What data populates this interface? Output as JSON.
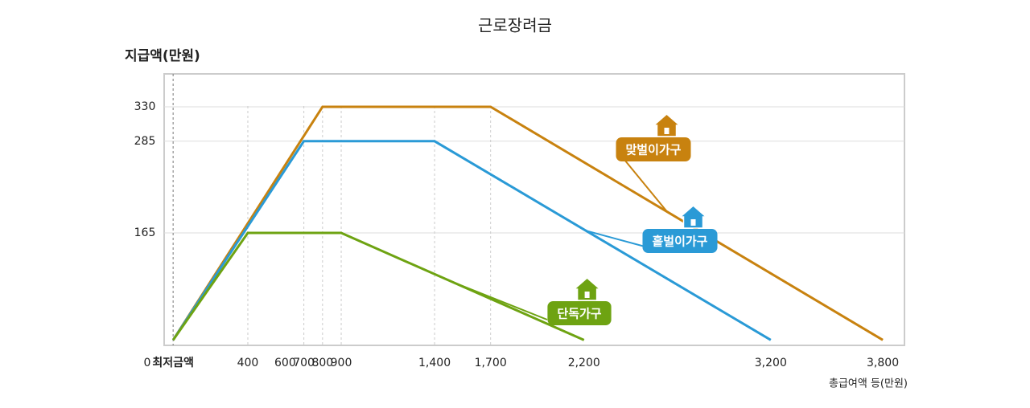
{
  "chart_data": {
    "type": "line",
    "title": "근로장려금",
    "y_axis_label": "지급액(만원)",
    "x_axis_label": "총급여액 등(만원)",
    "origin_label": "0",
    "xlim": [
      -48,
      3916
    ],
    "ylim": [
      18,
      373
    ],
    "yticks": [
      165,
      285,
      330
    ],
    "xticks": [
      {
        "value": 0,
        "label": "최저금액"
      },
      400,
      600,
      700,
      800,
      900,
      {
        "value": 1400,
        "label": "1,400"
      },
      {
        "value": 1700,
        "label": "1,700"
      },
      {
        "value": 2200,
        "label": "2,200"
      },
      {
        "value": 3200,
        "label": "3,200"
      },
      {
        "value": 3800,
        "label": "3,800"
      }
    ],
    "grid": true,
    "series": [
      {
        "name": "맞벌이가구",
        "color": "#c8820f",
        "x": [
          0,
          800,
          1700,
          3800
        ],
        "values": [
          25,
          330,
          330,
          25
        ]
      },
      {
        "name": "홑벌이가구",
        "color": "#2a9ad6",
        "x": [
          0,
          700,
          1400,
          3200
        ],
        "values": [
          25,
          285,
          285,
          25
        ]
      },
      {
        "name": "단독가구",
        "color": "#6ea312",
        "x": [
          0,
          400,
          900,
          2200
        ],
        "values": [
          25,
          165,
          165,
          25
        ]
      }
    ]
  }
}
